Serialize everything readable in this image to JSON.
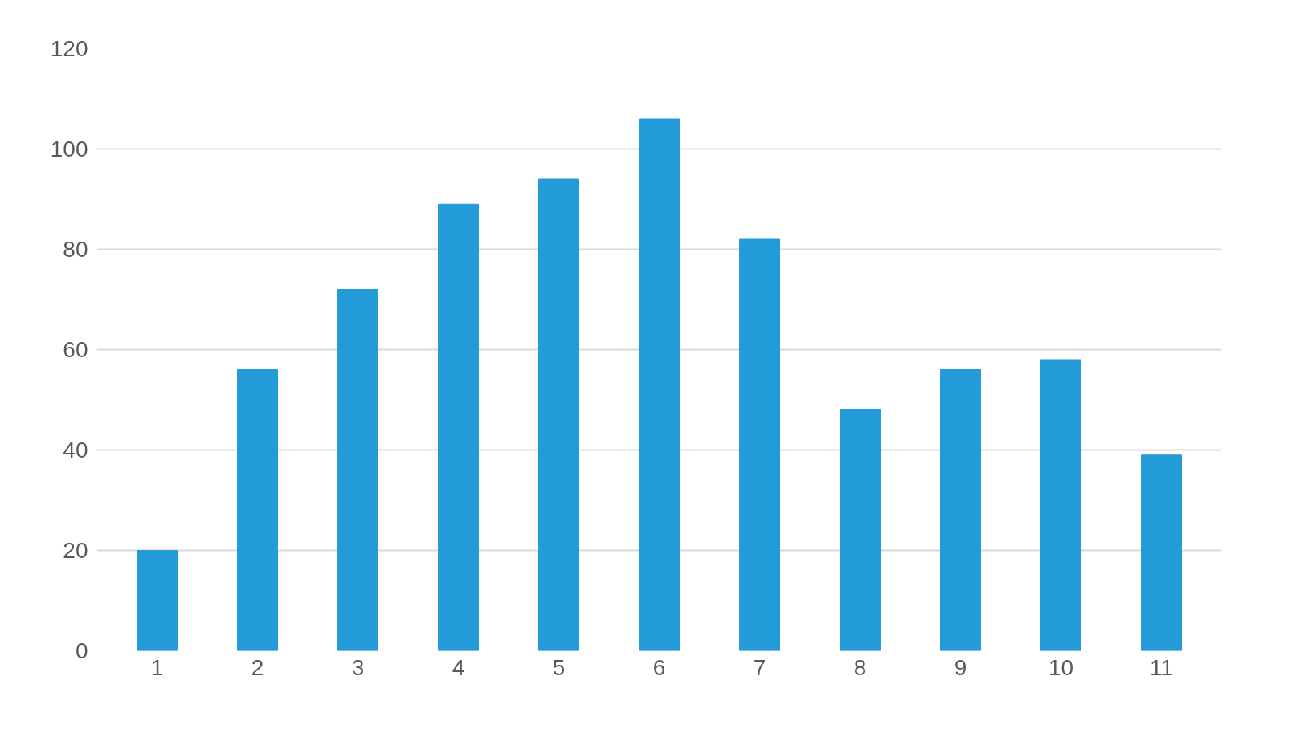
{
  "chart_data": {
    "type": "bar",
    "categories": [
      "1",
      "2",
      "3",
      "4",
      "5",
      "6",
      "7",
      "8",
      "9",
      "10",
      "11"
    ],
    "values": [
      20,
      56,
      72,
      89,
      94,
      106,
      82,
      48,
      56,
      58,
      39
    ],
    "color": "#239bd8",
    "ylim": [
      0,
      120
    ],
    "yticks": [
      0,
      20,
      40,
      60,
      80,
      100,
      120
    ],
    "grid": "y"
  }
}
